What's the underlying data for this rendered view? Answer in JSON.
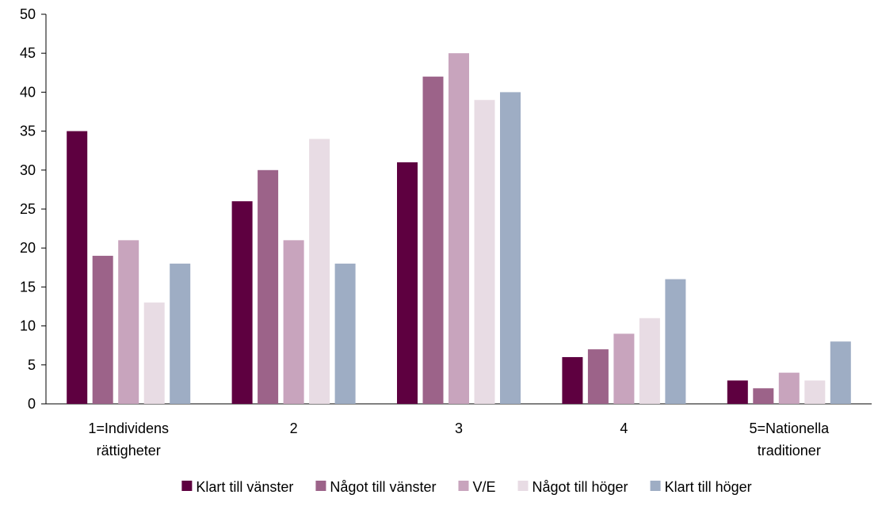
{
  "chart_data": {
    "type": "bar",
    "title": "",
    "xlabel": "",
    "ylabel": "",
    "ylim": [
      0,
      50
    ],
    "yticks": [
      0,
      5,
      10,
      15,
      20,
      25,
      30,
      35,
      40,
      45,
      50
    ],
    "grid": false,
    "legend_position": "bottom",
    "categories": [
      [
        "1=Individens",
        "rättigheter"
      ],
      [
        "2"
      ],
      [
        "3"
      ],
      [
        "4"
      ],
      [
        "5=Nationella",
        "traditioner"
      ]
    ],
    "series": [
      {
        "name": "Klart till vänster",
        "color": "#5e0040",
        "values": [
          35,
          26,
          31,
          6,
          3
        ]
      },
      {
        "name": "Något till vänster",
        "color": "#9c6389",
        "values": [
          19,
          30,
          42,
          7,
          2
        ]
      },
      {
        "name": "V/E",
        "color": "#c8a4bd",
        "values": [
          21,
          21,
          45,
          9,
          4
        ]
      },
      {
        "name": "Något till höger",
        "color": "#e8dce4",
        "values": [
          13,
          34,
          39,
          11,
          3
        ]
      },
      {
        "name": "Klart till höger",
        "color": "#9eadc4",
        "values": [
          18,
          18,
          40,
          16,
          8
        ]
      }
    ]
  }
}
